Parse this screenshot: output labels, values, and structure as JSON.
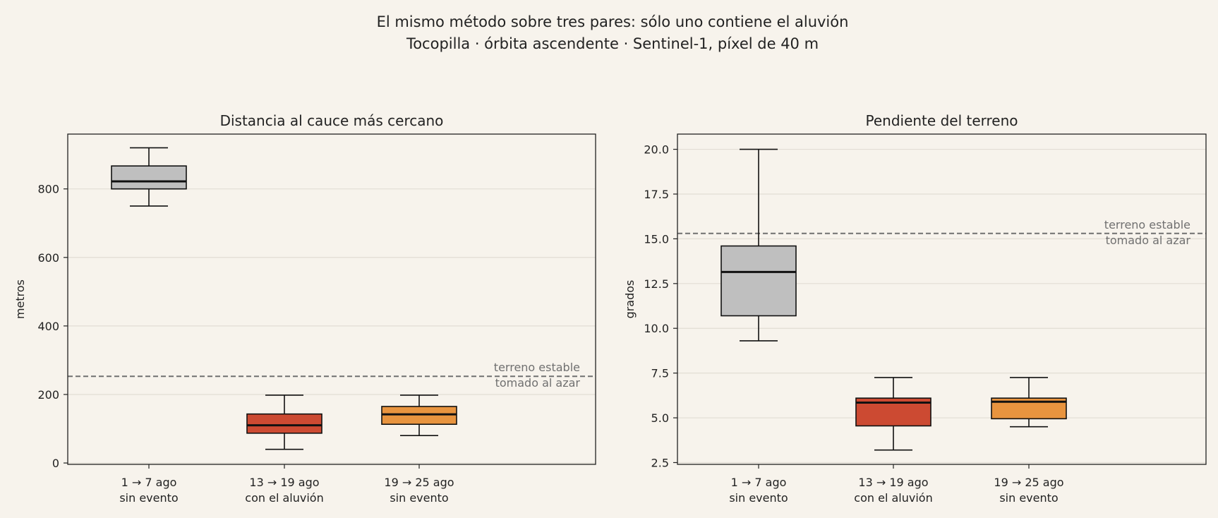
{
  "figure": {
    "title_line1": "El mismo método sobre tres pares: sólo uno contiene el aluvión",
    "title_line2": "Tocopilla · órbita ascendente · Sentinel-1, píxel de 40 m"
  },
  "colors": {
    "background": "#f7f3ec",
    "no_event": "#bfbfbf",
    "event": "#cc4a32",
    "no_event_late": "#e8943f",
    "reference_line": "#707070",
    "grid": "#e2ddd4"
  },
  "chart_data": [
    {
      "type": "box",
      "title": "Distancia al cauce más cercano",
      "xlabel": "",
      "ylabel": "metros",
      "ylim": [
        -4,
        960
      ],
      "yticks": [
        0,
        200,
        400,
        600,
        800
      ],
      "grid": "horizontal",
      "categories": [
        {
          "line1": "1 → 7 ago",
          "line2": "sin evento"
        },
        {
          "line1": "13 → 19 ago",
          "line2": "con el aluvión"
        },
        {
          "line1": "19 → 25 ago",
          "line2": "sin evento"
        }
      ],
      "boxes": [
        {
          "whisker_low": 750,
          "q1": 800,
          "median": 822,
          "q3": 867,
          "whisker_high": 920
        },
        {
          "whisker_low": 40,
          "q1": 87,
          "median": 110,
          "q3": 143,
          "whisker_high": 198
        },
        {
          "whisker_low": 80,
          "q1": 113,
          "median": 142,
          "q3": 165,
          "whisker_high": 198
        }
      ],
      "reference": {
        "value": 253,
        "label_line1": "terreno estable",
        "label_line2": "tomado al azar"
      }
    },
    {
      "type": "box",
      "title": "Pendiente del terreno",
      "xlabel": "",
      "ylabel": "grados",
      "ylim": [
        2.4,
        20.85
      ],
      "yticks": [
        2.5,
        5.0,
        7.5,
        10.0,
        12.5,
        15.0,
        17.5,
        20.0
      ],
      "ytick_labels": [
        "2.5",
        "5.0",
        "7.5",
        "10.0",
        "12.5",
        "15.0",
        "17.5",
        "20.0"
      ],
      "grid": "horizontal",
      "categories": [
        {
          "line1": "1 → 7 ago",
          "line2": "sin evento"
        },
        {
          "line1": "13 → 19 ago",
          "line2": "con el aluvión"
        },
        {
          "line1": "19 → 25 ago",
          "line2": "sin evento"
        }
      ],
      "boxes": [
        {
          "whisker_low": 9.3,
          "q1": 10.7,
          "median": 13.15,
          "q3": 14.6,
          "whisker_high": 20.0
        },
        {
          "whisker_low": 3.2,
          "q1": 4.55,
          "median": 5.85,
          "q3": 6.1,
          "whisker_high": 7.25
        },
        {
          "whisker_low": 4.5,
          "q1": 4.95,
          "median": 5.9,
          "q3": 6.1,
          "whisker_high": 7.25
        }
      ],
      "reference": {
        "value": 15.3,
        "label_line1": "terreno estable",
        "label_line2": "tomado al azar"
      }
    }
  ]
}
